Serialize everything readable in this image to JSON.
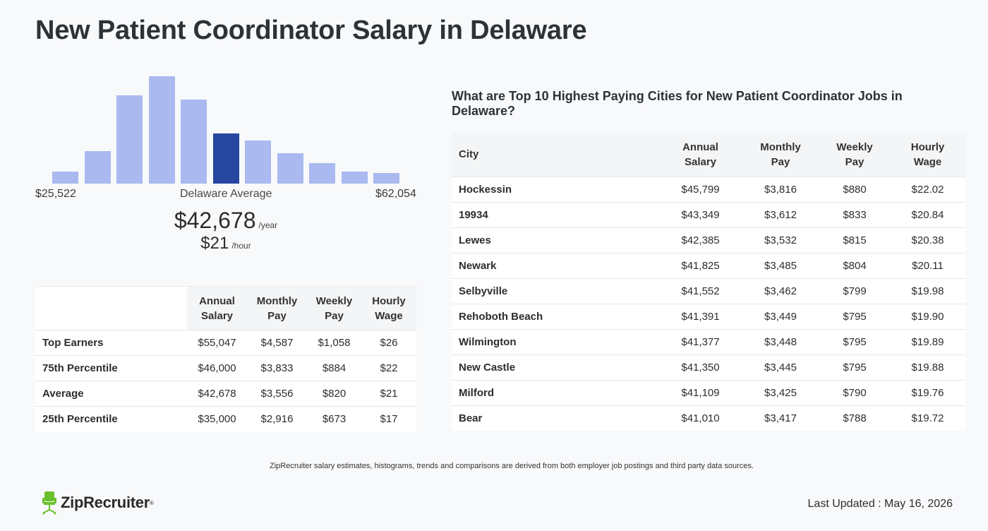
{
  "title": "New Patient Coordinator Salary in Delaware",
  "histogram": {
    "bars": [
      {
        "value": 0.11,
        "highlight": false
      },
      {
        "value": 0.3,
        "highlight": false
      },
      {
        "value": 0.82,
        "highlight": false
      },
      {
        "value": 1.0,
        "highlight": false
      },
      {
        "value": 0.78,
        "highlight": false
      },
      {
        "value": 0.47,
        "highlight": true
      },
      {
        "value": 0.4,
        "highlight": false
      },
      {
        "value": 0.28,
        "highlight": false
      },
      {
        "value": 0.19,
        "highlight": false
      },
      {
        "value": 0.11,
        "highlight": false
      },
      {
        "value": 0.1,
        "highlight": false
      }
    ],
    "bar_color": "#aab9f0",
    "highlight_color": "#2646a0",
    "min_label": "$25,522",
    "avg_label": "Delaware Average",
    "max_label": "$62,054"
  },
  "average": {
    "yearly": "$42,678",
    "yearly_unit": "/year",
    "hourly": "$21",
    "hourly_unit": "/hour"
  },
  "percentiles": {
    "headers": [
      [
        "Annual",
        "Salary"
      ],
      [
        "Monthly",
        "Pay"
      ],
      [
        "Weekly",
        "Pay"
      ],
      [
        "Hourly",
        "Wage"
      ]
    ],
    "rows": [
      {
        "label": "Top Earners",
        "values": [
          "$55,047",
          "$4,587",
          "$1,058",
          "$26"
        ]
      },
      {
        "label": "75th Percentile",
        "values": [
          "$46,000",
          "$3,833",
          "$884",
          "$22"
        ]
      },
      {
        "label": "Average",
        "values": [
          "$42,678",
          "$3,556",
          "$820",
          "$21"
        ]
      },
      {
        "label": "25th Percentile",
        "values": [
          "$35,000",
          "$2,916",
          "$673",
          "$17"
        ]
      }
    ]
  },
  "cities": {
    "title": "What are Top 10 Highest Paying Cities for New Patient Coordinator Jobs in Delaware?",
    "city_header": "City",
    "headers": [
      [
        "Annual",
        "Salary"
      ],
      [
        "Monthly",
        "Pay"
      ],
      [
        "Weekly",
        "Pay"
      ],
      [
        "Hourly",
        "Wage"
      ]
    ],
    "rows": [
      {
        "city": "Hockessin",
        "values": [
          "$45,799",
          "$3,816",
          "$880",
          "$22.02"
        ]
      },
      {
        "city": "19934",
        "values": [
          "$43,349",
          "$3,612",
          "$833",
          "$20.84"
        ]
      },
      {
        "city": "Lewes",
        "values": [
          "$42,385",
          "$3,532",
          "$815",
          "$20.38"
        ]
      },
      {
        "city": "Newark",
        "values": [
          "$41,825",
          "$3,485",
          "$804",
          "$20.11"
        ]
      },
      {
        "city": "Selbyville",
        "values": [
          "$41,552",
          "$3,462",
          "$799",
          "$19.98"
        ]
      },
      {
        "city": "Rehoboth Beach",
        "values": [
          "$41,391",
          "$3,449",
          "$795",
          "$19.90"
        ]
      },
      {
        "city": "Wilmington",
        "values": [
          "$41,377",
          "$3,448",
          "$795",
          "$19.89"
        ]
      },
      {
        "city": "New Castle",
        "values": [
          "$41,350",
          "$3,445",
          "$795",
          "$19.88"
        ]
      },
      {
        "city": "Milford",
        "values": [
          "$41,109",
          "$3,425",
          "$790",
          "$19.76"
        ]
      },
      {
        "city": "Bear",
        "values": [
          "$41,010",
          "$3,417",
          "$788",
          "$19.72"
        ]
      }
    ]
  },
  "footnote": "ZipRecruiter salary estimates, histograms, trends and comparisons are derived from both employer job postings and third party data sources.",
  "logo": {
    "name": "ZipRecruiter",
    "reg": "®",
    "icon": "chair-icon",
    "color": "#6ac02c"
  },
  "last_updated": "Last Updated : May 16, 2026"
}
